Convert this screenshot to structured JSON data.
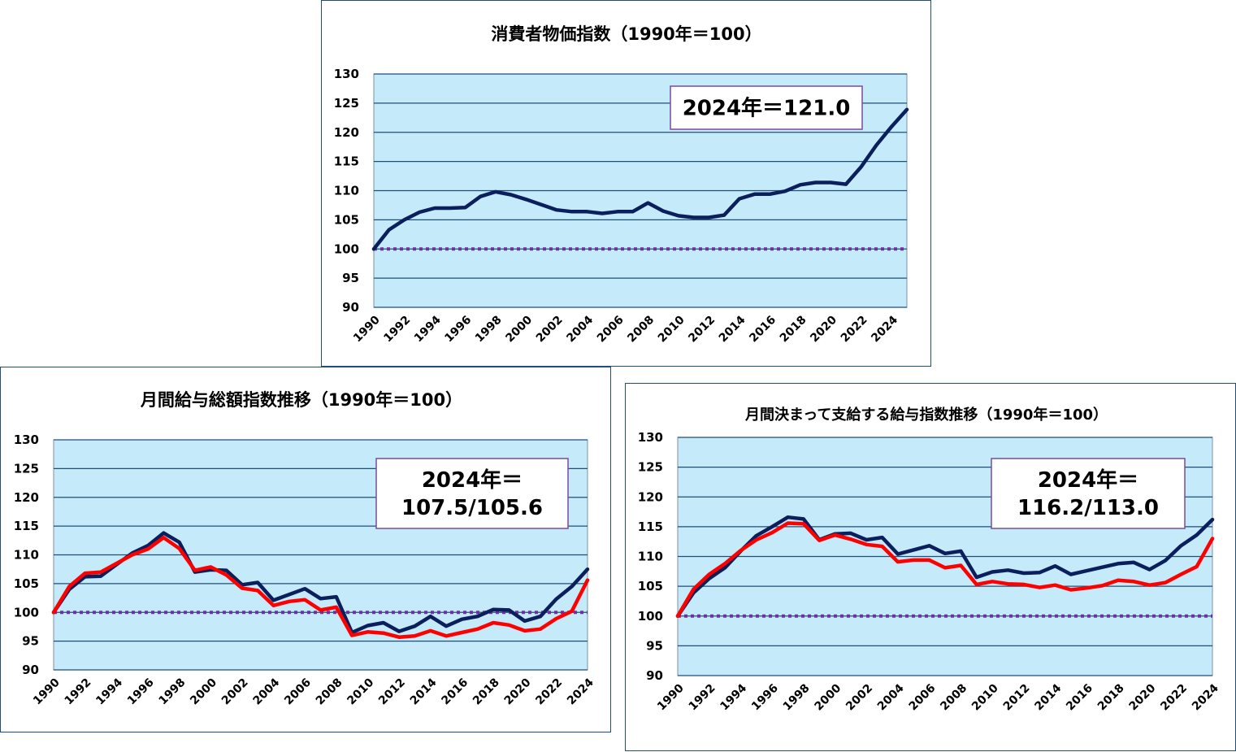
{
  "colors": {
    "plot_bg": "#c5ebfb",
    "grid": "#1f4e79",
    "line_navy": "#0b1f5c",
    "line_red": "#ff0000",
    "baseline": "#7030a0",
    "box_border": "#7a4aa0",
    "frame": "#1f4e79"
  },
  "chart_data": [
    {
      "id": "cpi",
      "type": "line",
      "title": "消費者物価指数（1990年＝100）",
      "ylim": [
        90,
        130
      ],
      "yticks": [
        "130",
        "125",
        "120",
        "115",
        "110",
        "105",
        "100",
        "95",
        "90"
      ],
      "xticks": [
        "1990",
        "1992",
        "1994",
        "1996",
        "1998",
        "2000",
        "2002",
        "2004",
        "2006",
        "2008",
        "2010",
        "2012",
        "2014",
        "2016",
        "2018",
        "2020",
        "2022",
        "2024"
      ],
      "baseline": 100,
      "annotation": [
        "2024年＝121.0"
      ],
      "x": [
        1990,
        1991,
        1992,
        1993,
        1994,
        1995,
        1996,
        1997,
        1998,
        1999,
        2000,
        2001,
        2002,
        2003,
        2004,
        2005,
        2006,
        2007,
        2008,
        2009,
        2010,
        2011,
        2012,
        2013,
        2014,
        2015,
        2016,
        2017,
        2018,
        2019,
        2020,
        2021,
        2022,
        2023,
        2024,
        2025
      ],
      "series": [
        {
          "color": "navy",
          "values": [
            100.0,
            103.3,
            105.0,
            106.3,
            107.0,
            107.0,
            107.1,
            109.0,
            109.8,
            109.3,
            108.5,
            107.6,
            106.7,
            106.4,
            106.4,
            106.1,
            106.4,
            106.4,
            107.9,
            106.5,
            105.7,
            105.4,
            105.4,
            105.8,
            108.6,
            109.4,
            109.4,
            109.9,
            111.0,
            111.4,
            111.4,
            111.1,
            114.1,
            117.8,
            121.0,
            123.9
          ]
        }
      ]
    },
    {
      "id": "total_wages",
      "type": "line",
      "title": "月間給与総額指数推移（1990年＝100）",
      "ylim": [
        90,
        130
      ],
      "yticks": [
        "130",
        "125",
        "120",
        "115",
        "110",
        "105",
        "100",
        "95",
        "90"
      ],
      "xticks": [
        "1990",
        "1992",
        "1994",
        "1996",
        "1998",
        "2000",
        "2002",
        "2004",
        "2006",
        "2008",
        "2010",
        "2012",
        "2014",
        "2016",
        "2018",
        "2020",
        "2022",
        "2024"
      ],
      "baseline": 100,
      "annotation": [
        "2024年＝",
        "107.5/105.6"
      ],
      "x": [
        1990,
        1991,
        1992,
        1993,
        1994,
        1995,
        1996,
        1997,
        1998,
        1999,
        2000,
        2001,
        2002,
        2003,
        2004,
        2005,
        2006,
        2007,
        2008,
        2009,
        2010,
        2011,
        2012,
        2013,
        2014,
        2015,
        2016,
        2017,
        2018,
        2019,
        2020,
        2021,
        2022,
        2023,
        2024
      ],
      "series": [
        {
          "color": "navy",
          "values": [
            100.0,
            104.0,
            106.2,
            106.3,
            108.3,
            110.3,
            111.6,
            113.8,
            112.2,
            107.0,
            107.4,
            107.3,
            104.8,
            105.2,
            102.1,
            103.1,
            104.1,
            102.4,
            102.7,
            96.5,
            97.7,
            98.2,
            96.7,
            97.6,
            99.3,
            97.6,
            98.8,
            99.3,
            100.5,
            100.4,
            98.5,
            99.3,
            102.3,
            104.5,
            107.5
          ]
        },
        {
          "color": "red",
          "values": [
            100.0,
            104.5,
            106.8,
            107.0,
            108.5,
            110.0,
            111.0,
            113.0,
            111.1,
            107.3,
            107.9,
            106.5,
            104.2,
            103.8,
            101.2,
            101.9,
            102.2,
            100.4,
            100.9,
            96.0,
            96.6,
            96.4,
            95.7,
            95.9,
            96.8,
            95.9,
            96.5,
            97.1,
            98.2,
            97.8,
            96.8,
            97.1,
            98.9,
            100.2,
            105.6
          ]
        }
      ]
    },
    {
      "id": "regular_wages",
      "type": "line",
      "title": "月間決まって支給する給与指数推移（1990年＝100）",
      "ylim": [
        90,
        130
      ],
      "yticks": [
        "130",
        "125",
        "120",
        "115",
        "110",
        "105",
        "100",
        "95",
        "90"
      ],
      "xticks": [
        "1990",
        "1992",
        "1994",
        "1996",
        "1998",
        "2000",
        "2002",
        "2004",
        "2006",
        "2008",
        "2010",
        "2012",
        "2014",
        "2016",
        "2018",
        "2020",
        "2022",
        "2024"
      ],
      "baseline": 100,
      "annotation": [
        "2024年＝",
        "116.2/113.0"
      ],
      "x": [
        1990,
        1991,
        1992,
        1993,
        1994,
        1995,
        1996,
        1997,
        1998,
        1999,
        2000,
        2001,
        2002,
        2003,
        2004,
        2005,
        2006,
        2007,
        2008,
        2009,
        2010,
        2011,
        2012,
        2013,
        2014,
        2015,
        2016,
        2017,
        2018,
        2019,
        2020,
        2021,
        2022,
        2023,
        2024
      ],
      "series": [
        {
          "color": "navy",
          "values": [
            100.0,
            103.9,
            106.3,
            108.1,
            110.9,
            113.5,
            115.0,
            116.6,
            116.3,
            112.8,
            113.8,
            113.9,
            112.8,
            113.2,
            110.4,
            111.1,
            111.8,
            110.5,
            110.9,
            106.5,
            107.4,
            107.7,
            107.2,
            107.3,
            108.4,
            107.0,
            107.6,
            108.2,
            108.8,
            109.0,
            107.8,
            109.3,
            111.8,
            113.6,
            116.2
          ]
        },
        {
          "color": "red",
          "values": [
            100.0,
            104.5,
            107.0,
            108.8,
            111.0,
            112.8,
            114.0,
            115.6,
            115.5,
            112.7,
            113.6,
            112.9,
            112.0,
            111.7,
            109.1,
            109.4,
            109.4,
            108.1,
            108.5,
            105.3,
            105.8,
            105.4,
            105.3,
            104.8,
            105.2,
            104.4,
            104.7,
            105.1,
            106.0,
            105.8,
            105.2,
            105.6,
            107.0,
            108.3,
            113.0
          ]
        }
      ]
    }
  ]
}
